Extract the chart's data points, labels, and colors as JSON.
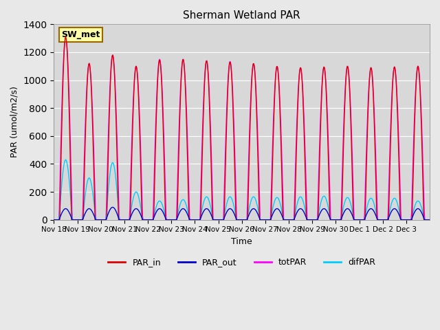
{
  "title": "Sherman Wetland PAR",
  "ylabel": "PAR (umol/m2/s)",
  "xlabel": "Time",
  "station_label": "SW_met",
  "ylim": [
    0,
    1400
  ],
  "background_color": "#e8e8e8",
  "plot_bg_color": "#d8d8d8",
  "colors": {
    "PAR_in": "#dd0000",
    "PAR_out": "#0000cc",
    "totPAR": "#ff00ff",
    "difPAR": "#00ccff"
  },
  "legend_labels": [
    "PAR_in",
    "PAR_out",
    "totPAR",
    "difPAR"
  ],
  "xtick_labels": [
    "Nov 18",
    "Nov 19",
    "Nov 20",
    "Nov 21",
    "Nov 22",
    "Nov 23",
    "Nov 24",
    "Nov 25",
    "Nov 26",
    "Nov 27",
    "Nov 28",
    "Nov 29",
    "Nov 30",
    "Dec 1",
    "Dec 2",
    "Dec 3"
  ],
  "num_days": 16,
  "PAR_in_peaks": [
    1310,
    1120,
    1180,
    1100,
    1145,
    1150,
    1140,
    1130,
    1120,
    1100,
    1090,
    1095,
    1100,
    1090,
    1095,
    1100
  ],
  "PAR_out_peaks": [
    80,
    80,
    90,
    80,
    80,
    80,
    80,
    80,
    80,
    80,
    80,
    80,
    80,
    80,
    80,
    80
  ],
  "totPAR_peaks": [
    1310,
    1120,
    1180,
    1100,
    1150,
    1150,
    1140,
    1135,
    1120,
    1100,
    1090,
    1095,
    1100,
    1090,
    1095,
    1100
  ],
  "difPAR_peaks": [
    430,
    300,
    410,
    200,
    135,
    145,
    165,
    165,
    165,
    160,
    165,
    170,
    160,
    155,
    155,
    135
  ]
}
